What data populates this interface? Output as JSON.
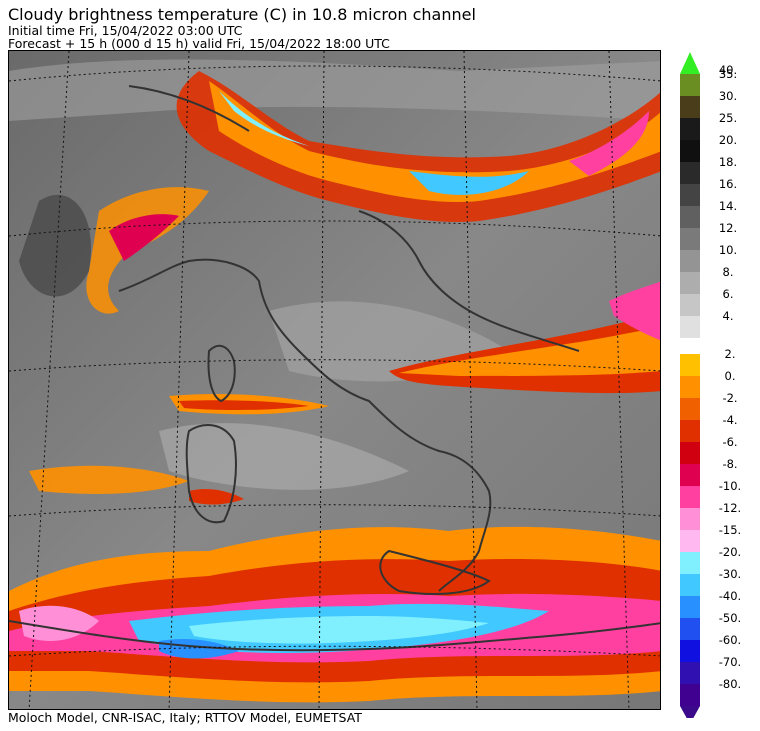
{
  "title": "Cloudy brightness temperature (C) in   10.8 micron channel",
  "initial_time": "Initial time  Fri, 15/04/2022  03:00 UTC",
  "forecast": "Forecast  +  15 h  (000 d 15 h)  valid Fri, 15/04/2022 18:00 UTC",
  "footer": "Moloch Model, CNR-ISAC, Italy; RTTOV Model, EUMETSAT",
  "colorbar": {
    "warm": [
      {
        "label": "40.",
        "color": "#33ee22"
      },
      {
        "label": "35.",
        "color": "#6b8e23"
      },
      {
        "label": "30.",
        "color": "#4a3d1a"
      },
      {
        "label": "25.",
        "color": "#1a1a1a"
      },
      {
        "label": "20.",
        "color": "#101010"
      },
      {
        "label": "18.",
        "color": "#2a2a2a"
      },
      {
        "label": "16.",
        "color": "#444444"
      },
      {
        "label": "14.",
        "color": "#606060"
      },
      {
        "label": "12.",
        "color": "#7a7a7a"
      },
      {
        "label": "10.",
        "color": "#949494"
      },
      {
        "label": "8.",
        "color": "#adadad"
      },
      {
        "label": "6.",
        "color": "#c6c6c6"
      },
      {
        "label": "4.",
        "color": "#e0e0e0"
      }
    ],
    "cold": [
      {
        "label": "2.",
        "color": "#ffc000"
      },
      {
        "label": "0.",
        "color": "#ff9000"
      },
      {
        "label": "-2.",
        "color": "#f06000"
      },
      {
        "label": "-4.",
        "color": "#e03000"
      },
      {
        "label": "-6.",
        "color": "#d00010"
      },
      {
        "label": "-8.",
        "color": "#e00050"
      },
      {
        "label": "-10.",
        "color": "#ff40a0"
      },
      {
        "label": "-12.",
        "color": "#ff90d8"
      },
      {
        "label": "-15.",
        "color": "#ffb8f0"
      },
      {
        "label": "-20.",
        "color": "#80f0ff"
      },
      {
        "label": "-30.",
        "color": "#40c8ff"
      },
      {
        "label": "-40.",
        "color": "#2890ff"
      },
      {
        "label": "-50.",
        "color": "#2050f0"
      },
      {
        "label": "-60.",
        "color": "#1010e0"
      },
      {
        "label": "-70.",
        "color": "#3010b0"
      },
      {
        "label": "-80.",
        "color": "#400090"
      }
    ],
    "bottom_arrow_color": "#3a0a8a"
  }
}
